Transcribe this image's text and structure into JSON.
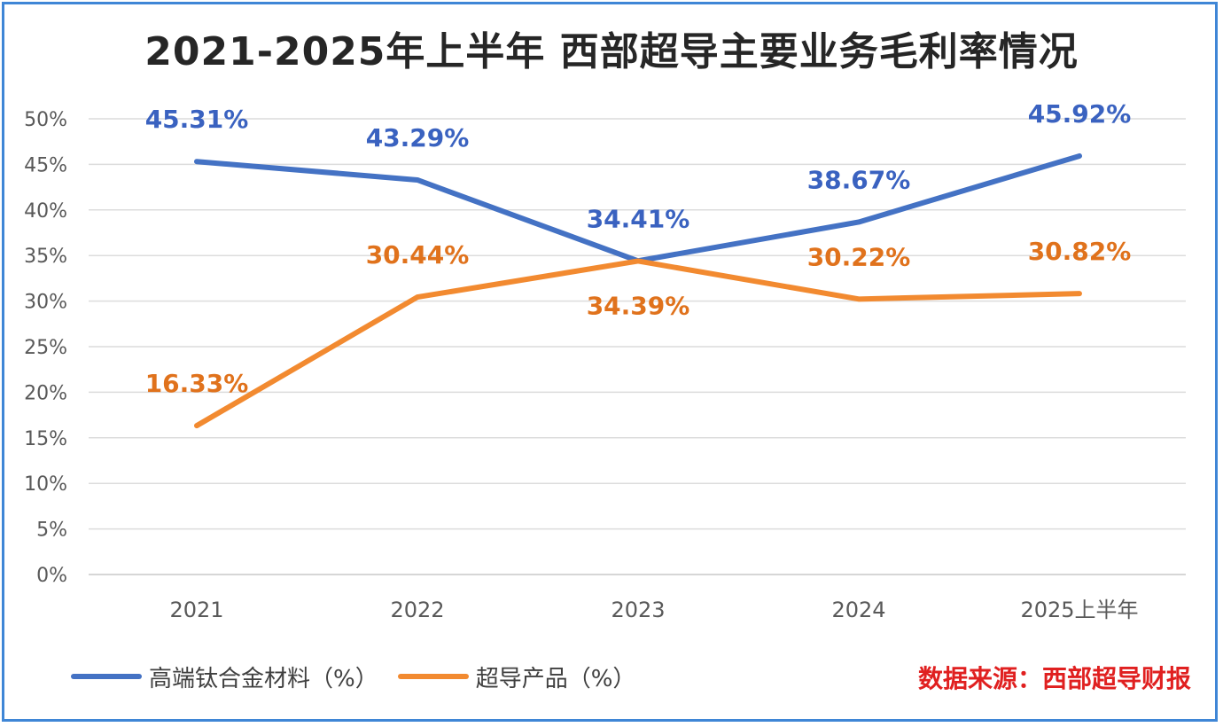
{
  "chart_data": {
    "type": "line",
    "title": "2021-2025年上半年 西部超导主要业务毛利率情况",
    "categories": [
      "2021",
      "2022",
      "2023",
      "2024",
      "2025上半年"
    ],
    "ylim": [
      0,
      50
    ],
    "yticks": [
      "0%",
      "5%",
      "10%",
      "15%",
      "20%",
      "25%",
      "30%",
      "35%",
      "40%",
      "45%",
      "50%"
    ],
    "ytick_values": [
      0,
      5,
      10,
      15,
      20,
      25,
      30,
      35,
      40,
      45,
      50
    ],
    "grid": true,
    "legend_position": "bottom-left",
    "series": [
      {
        "name": "高端钛合金材料（%）",
        "color": "#4472c4",
        "label_color": "#3a62c0",
        "values": [
          45.31,
          43.29,
          34.41,
          38.67,
          45.92
        ],
        "labels": [
          "45.31%",
          "43.29%",
          "34.41%",
          "38.67%",
          "45.92%"
        ],
        "label_placement": [
          "above",
          "above",
          "above",
          "above",
          "above"
        ]
      },
      {
        "name": "超导产品（%）",
        "color": "#f28a30",
        "label_color": "#e0721c",
        "values": [
          16.33,
          30.44,
          34.39,
          30.22,
          30.82
        ],
        "labels": [
          "16.33%",
          "30.44%",
          "34.39%",
          "30.22%",
          "30.82%"
        ],
        "label_placement": [
          "above",
          "above",
          "below",
          "above",
          "above"
        ]
      }
    ],
    "source_note": "数据来源：西部超导财报"
  }
}
